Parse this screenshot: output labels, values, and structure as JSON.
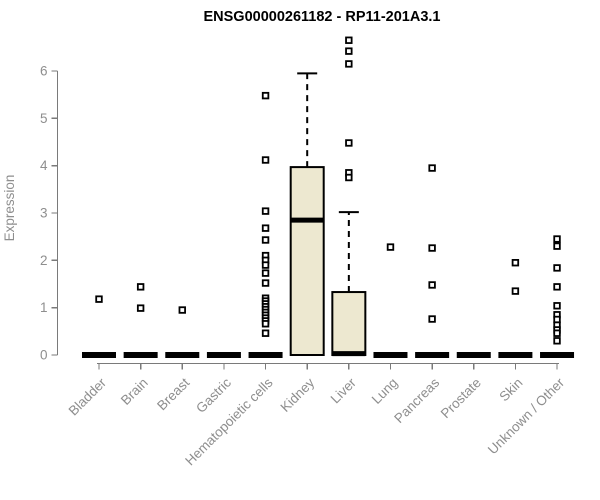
{
  "header": {
    "title": "ENSG00000261182 - RP11-201A3.1"
  },
  "chart_data": {
    "type": "boxplot",
    "title": "ENSG00000261182 - RP11-201A3.1",
    "xlabel": "",
    "ylabel": "Expression",
    "ylim": [
      0,
      6.9
    ],
    "yticks": [
      0,
      1,
      2,
      3,
      4,
      5,
      6
    ],
    "grid": false,
    "legend_position": "none",
    "colors": {
      "box_fill": "#ede8d0",
      "box_border": "#000000",
      "median": "#000000",
      "outlier": "#000000",
      "axis": "#7a7a7a",
      "tick_label": "#8e8e8e",
      "title": "#000000",
      "background": "#ffffff"
    },
    "categories": [
      "Bladder",
      "Brain",
      "Breast",
      "Gastric",
      "Hematopoietic cells",
      "Kidney",
      "Liver",
      "Lung",
      "Pancreas",
      "Prostate",
      "Skin",
      "Unknown / Other"
    ],
    "series": [
      {
        "name": "Bladder",
        "q1": 0,
        "median": 0,
        "q3": 0,
        "whisker_low": 0,
        "whisker_high": 0,
        "outliers": [
          1.18
        ]
      },
      {
        "name": "Brain",
        "q1": 0,
        "median": 0,
        "q3": 0,
        "whisker_low": 0,
        "whisker_high": 0,
        "outliers": [
          1.44,
          0.99
        ]
      },
      {
        "name": "Breast",
        "q1": 0,
        "median": 0,
        "q3": 0,
        "whisker_low": 0,
        "whisker_high": 0,
        "outliers": [
          0.95
        ]
      },
      {
        "name": "Gastric",
        "q1": 0,
        "median": 0,
        "q3": 0,
        "whisker_low": 0,
        "whisker_high": 0,
        "outliers": []
      },
      {
        "name": "Hematopoietic cells",
        "q1": 0,
        "median": 0,
        "q3": 0,
        "whisker_low": 0,
        "whisker_high": 0,
        "outliers": [
          5.48,
          4.12,
          3.04,
          2.68,
          2.43,
          2.1,
          2.0,
          1.9,
          1.73,
          1.52,
          1.2,
          1.14,
          1.08,
          1.02,
          0.96,
          0.9,
          0.84,
          0.78,
          0.72,
          0.66,
          0.46
        ]
      },
      {
        "name": "Kidney",
        "q1": 0,
        "median": 2.85,
        "q3": 3.97,
        "whisker_low": 0,
        "whisker_high": 5.95,
        "outliers": []
      },
      {
        "name": "Liver",
        "q1": 0,
        "median": 0.03,
        "q3": 1.33,
        "whisker_low": 0,
        "whisker_high": 3.02,
        "outliers": [
          6.65,
          6.42,
          6.15,
          4.48,
          3.85,
          3.75
        ]
      },
      {
        "name": "Lung",
        "q1": 0,
        "median": 0,
        "q3": 0,
        "whisker_low": 0,
        "whisker_high": 0,
        "outliers": [
          2.28
        ]
      },
      {
        "name": "Pancreas",
        "q1": 0,
        "median": 0,
        "q3": 0,
        "whisker_low": 0,
        "whisker_high": 0,
        "outliers": [
          3.95,
          2.26,
          1.48,
          0.76
        ]
      },
      {
        "name": "Prostate",
        "q1": 0,
        "median": 0,
        "q3": 0,
        "whisker_low": 0,
        "whisker_high": 0,
        "outliers": []
      },
      {
        "name": "Skin",
        "q1": 0,
        "median": 0,
        "q3": 0,
        "whisker_low": 0,
        "whisker_high": 0,
        "outliers": [
          1.95,
          1.35
        ]
      },
      {
        "name": "Unknown / Other",
        "q1": 0,
        "median": 0,
        "q3": 0,
        "whisker_low": 0,
        "whisker_high": 0,
        "outliers": [
          2.45,
          2.3,
          1.84,
          1.44,
          1.04,
          0.85,
          0.75,
          0.63,
          0.53,
          0.46,
          0.3
        ]
      }
    ]
  }
}
